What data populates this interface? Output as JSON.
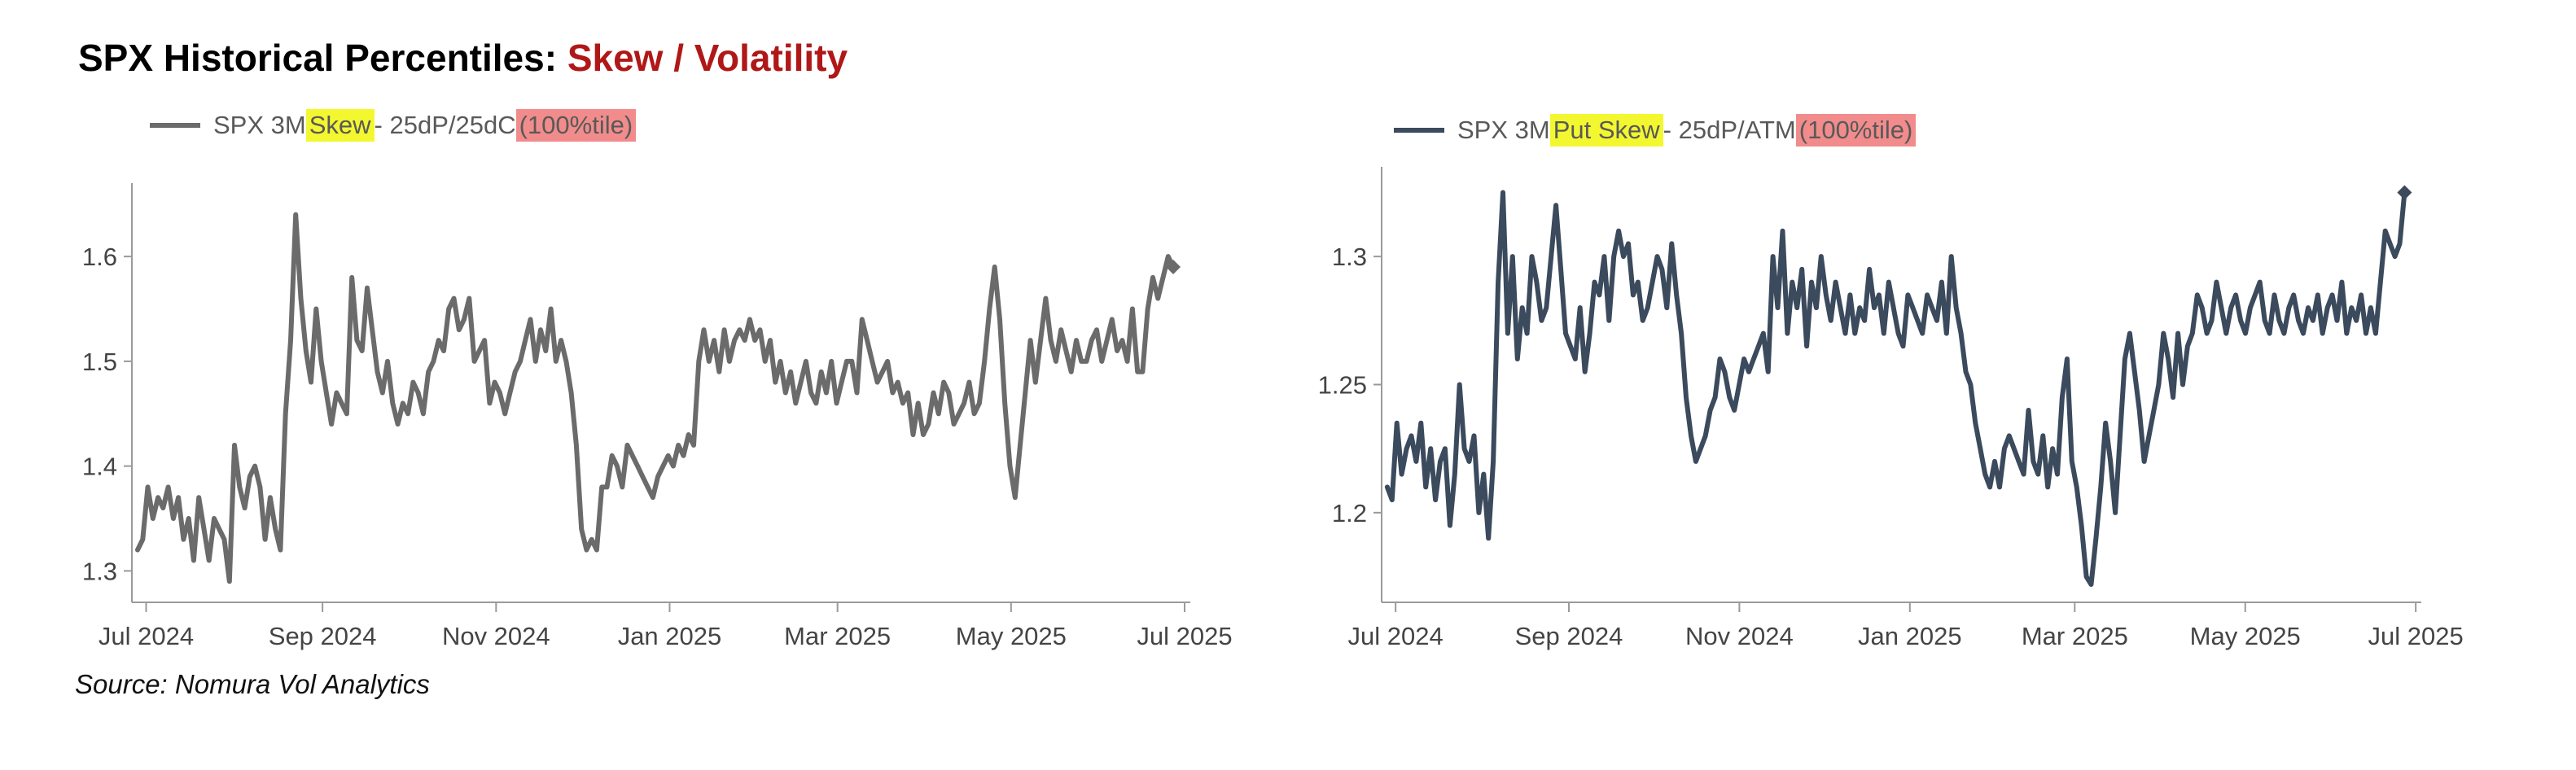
{
  "title": {
    "main": "SPX Historical Percentiles: ",
    "accent": "Skew / Volatility"
  },
  "source": "Source: Nomura Vol Analytics",
  "chart_data": [
    {
      "type": "line",
      "legend": {
        "prefix": "SPX 3M ",
        "highlight": "Skew",
        "suffix": " - 25dP/25dC ",
        "badge": "(100%tile)"
      },
      "series_color": "#6b6b6b",
      "x_start": "2024-06-28",
      "x_end": "2025-06-27",
      "xlim": [
        "2024-06-26",
        "2025-07-03"
      ],
      "xticks": [
        {
          "date": "2024-07-01",
          "label": "Jul 2024"
        },
        {
          "date": "2024-09-01",
          "label": "Sep 2024"
        },
        {
          "date": "2024-11-01",
          "label": "Nov 2024"
        },
        {
          "date": "2025-01-01",
          "label": "Jan 2025"
        },
        {
          "date": "2025-03-01",
          "label": "Mar 2025"
        },
        {
          "date": "2025-05-01",
          "label": "May 2025"
        },
        {
          "date": "2025-07-01",
          "label": "Jul 2025"
        }
      ],
      "ylim": [
        1.27,
        1.67
      ],
      "yticks": [
        1.3,
        1.4,
        1.5,
        1.6
      ],
      "values": [
        1.32,
        1.33,
        1.38,
        1.35,
        1.37,
        1.36,
        1.38,
        1.35,
        1.37,
        1.33,
        1.35,
        1.31,
        1.37,
        1.34,
        1.31,
        1.35,
        1.34,
        1.33,
        1.29,
        1.42,
        1.38,
        1.36,
        1.39,
        1.4,
        1.38,
        1.33,
        1.37,
        1.34,
        1.32,
        1.45,
        1.52,
        1.64,
        1.56,
        1.51,
        1.48,
        1.55,
        1.5,
        1.47,
        1.44,
        1.47,
        1.46,
        1.45,
        1.58,
        1.52,
        1.51,
        1.57,
        1.53,
        1.49,
        1.47,
        1.5,
        1.46,
        1.44,
        1.46,
        1.45,
        1.48,
        1.47,
        1.45,
        1.49,
        1.5,
        1.52,
        1.51,
        1.55,
        1.56,
        1.53,
        1.54,
        1.56,
        1.5,
        1.51,
        1.52,
        1.46,
        1.48,
        1.47,
        1.45,
        1.47,
        1.49,
        1.5,
        1.52,
        1.54,
        1.5,
        1.53,
        1.51,
        1.55,
        1.5,
        1.52,
        1.5,
        1.47,
        1.42,
        1.34,
        1.32,
        1.33,
        1.32,
        1.38,
        1.38,
        1.41,
        1.4,
        1.38,
        1.42,
        1.41,
        1.4,
        1.39,
        1.38,
        1.37,
        1.39,
        1.4,
        1.41,
        1.4,
        1.42,
        1.41,
        1.43,
        1.42,
        1.5,
        1.53,
        1.5,
        1.52,
        1.49,
        1.53,
        1.5,
        1.52,
        1.53,
        1.52,
        1.54,
        1.52,
        1.53,
        1.5,
        1.52,
        1.48,
        1.5,
        1.47,
        1.49,
        1.46,
        1.48,
        1.5,
        1.47,
        1.46,
        1.49,
        1.47,
        1.5,
        1.46,
        1.48,
        1.5,
        1.5,
        1.47,
        1.54,
        1.52,
        1.5,
        1.48,
        1.49,
        1.5,
        1.47,
        1.48,
        1.46,
        1.47,
        1.43,
        1.46,
        1.43,
        1.44,
        1.47,
        1.45,
        1.48,
        1.47,
        1.44,
        1.45,
        1.46,
        1.48,
        1.45,
        1.46,
        1.5,
        1.55,
        1.59,
        1.54,
        1.46,
        1.4,
        1.37,
        1.42,
        1.47,
        1.52,
        1.48,
        1.52,
        1.56,
        1.52,
        1.5,
        1.53,
        1.51,
        1.49,
        1.52,
        1.5,
        1.5,
        1.52,
        1.53,
        1.5,
        1.52,
        1.54,
        1.51,
        1.52,
        1.5,
        1.55,
        1.49,
        1.49,
        1.55,
        1.58,
        1.56,
        1.58,
        1.6,
        1.59
      ]
    },
    {
      "type": "line",
      "legend": {
        "prefix": "SPX 3M ",
        "highlight": "Put Skew",
        "suffix": " - 25dP/ATM ",
        "badge": "(100%tile)"
      },
      "series_color": "#3b4a5c",
      "x_start": "2024-06-28",
      "x_end": "2025-06-27",
      "xlim": [
        "2024-06-26",
        "2025-07-03"
      ],
      "xticks": [
        {
          "date": "2024-07-01",
          "label": "Jul 2024"
        },
        {
          "date": "2024-09-01",
          "label": "Sep 2024"
        },
        {
          "date": "2024-11-01",
          "label": "Nov 2024"
        },
        {
          "date": "2025-01-01",
          "label": "Jan 2025"
        },
        {
          "date": "2025-03-01",
          "label": "Mar 2025"
        },
        {
          "date": "2025-05-01",
          "label": "May 2025"
        },
        {
          "date": "2025-07-01",
          "label": "Jul 2025"
        }
      ],
      "ylim": [
        1.165,
        1.335
      ],
      "yticks": [
        1.2,
        1.25,
        1.3
      ],
      "values": [
        1.21,
        1.205,
        1.235,
        1.215,
        1.225,
        1.23,
        1.22,
        1.235,
        1.21,
        1.225,
        1.205,
        1.22,
        1.225,
        1.195,
        1.215,
        1.25,
        1.225,
        1.22,
        1.23,
        1.2,
        1.215,
        1.19,
        1.22,
        1.29,
        1.325,
        1.27,
        1.3,
        1.26,
        1.28,
        1.27,
        1.3,
        1.29,
        1.275,
        1.28,
        1.3,
        1.32,
        1.295,
        1.27,
        1.265,
        1.26,
        1.28,
        1.255,
        1.27,
        1.29,
        1.285,
        1.3,
        1.275,
        1.3,
        1.31,
        1.3,
        1.305,
        1.285,
        1.29,
        1.275,
        1.28,
        1.29,
        1.3,
        1.295,
        1.28,
        1.305,
        1.285,
        1.27,
        1.245,
        1.23,
        1.22,
        1.225,
        1.23,
        1.24,
        1.245,
        1.26,
        1.255,
        1.245,
        1.24,
        1.25,
        1.26,
        1.255,
        1.26,
        1.265,
        1.27,
        1.255,
        1.3,
        1.28,
        1.31,
        1.27,
        1.29,
        1.28,
        1.295,
        1.265,
        1.29,
        1.28,
        1.3,
        1.285,
        1.275,
        1.29,
        1.28,
        1.27,
        1.285,
        1.27,
        1.28,
        1.275,
        1.295,
        1.28,
        1.285,
        1.27,
        1.29,
        1.28,
        1.27,
        1.265,
        1.285,
        1.28,
        1.275,
        1.27,
        1.285,
        1.28,
        1.275,
        1.29,
        1.27,
        1.3,
        1.28,
        1.27,
        1.255,
        1.25,
        1.235,
        1.225,
        1.215,
        1.21,
        1.22,
        1.21,
        1.225,
        1.23,
        1.225,
        1.22,
        1.215,
        1.24,
        1.22,
        1.215,
        1.23,
        1.21,
        1.225,
        1.215,
        1.245,
        1.26,
        1.22,
        1.21,
        1.195,
        1.175,
        1.172,
        1.19,
        1.21,
        1.235,
        1.22,
        1.2,
        1.23,
        1.26,
        1.27,
        1.255,
        1.24,
        1.22,
        1.23,
        1.24,
        1.25,
        1.27,
        1.26,
        1.245,
        1.27,
        1.25,
        1.265,
        1.27,
        1.285,
        1.28,
        1.27,
        1.275,
        1.29,
        1.28,
        1.27,
        1.28,
        1.285,
        1.275,
        1.27,
        1.28,
        1.285,
        1.29,
        1.275,
        1.27,
        1.285,
        1.275,
        1.27,
        1.28,
        1.285,
        1.275,
        1.27,
        1.28,
        1.275,
        1.285,
        1.27,
        1.28,
        1.285,
        1.275,
        1.29,
        1.27,
        1.28,
        1.275,
        1.285,
        1.27,
        1.28,
        1.27,
        1.29,
        1.31,
        1.305,
        1.3,
        1.305,
        1.325
      ]
    }
  ]
}
